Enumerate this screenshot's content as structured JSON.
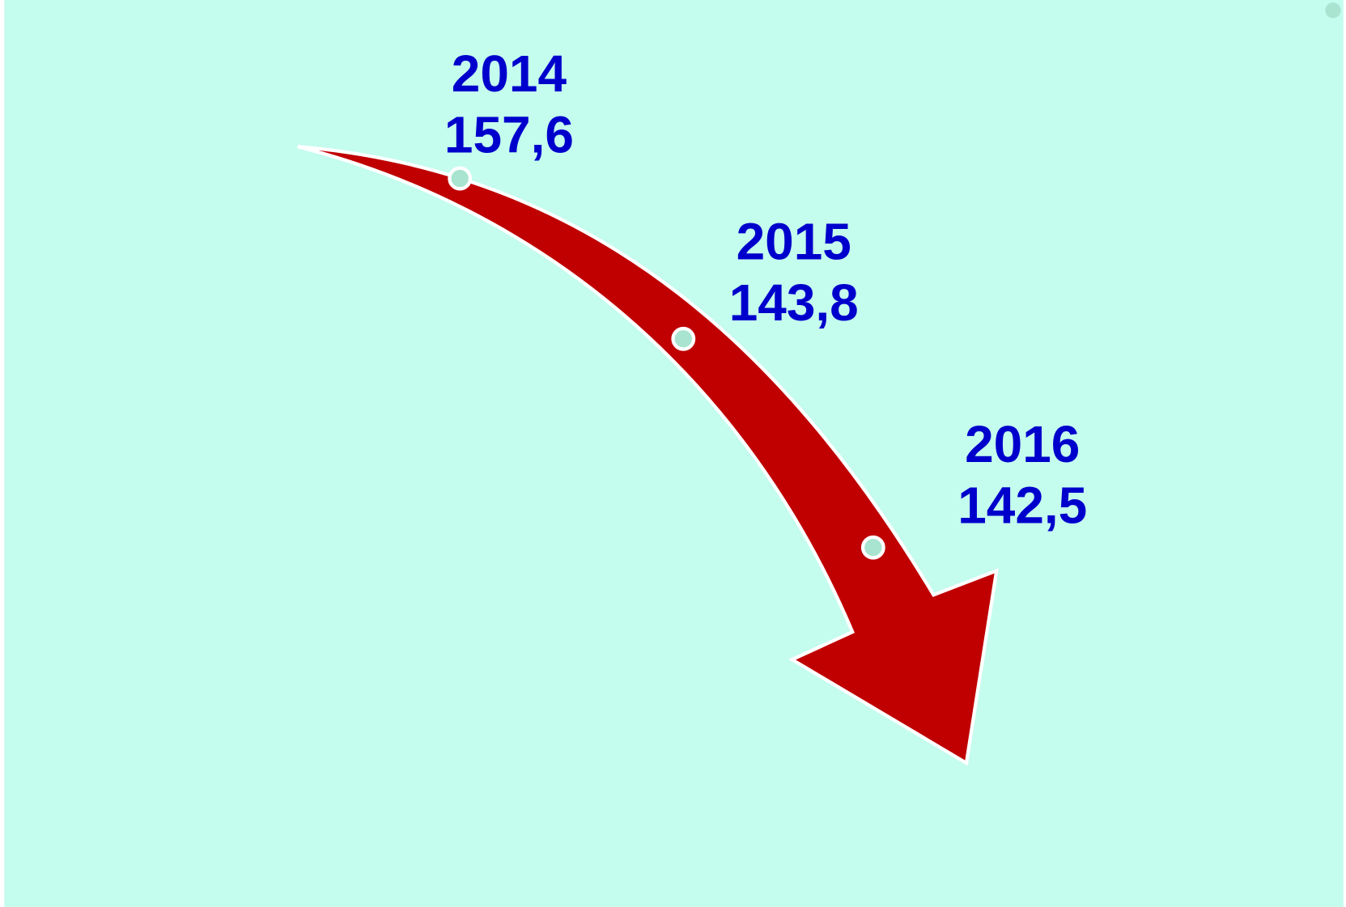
{
  "points": [
    {
      "year": "2014",
      "value": "157,6"
    },
    {
      "year": "2015",
      "value": "143,8"
    },
    {
      "year": "2016",
      "value": "142,5"
    }
  ]
}
